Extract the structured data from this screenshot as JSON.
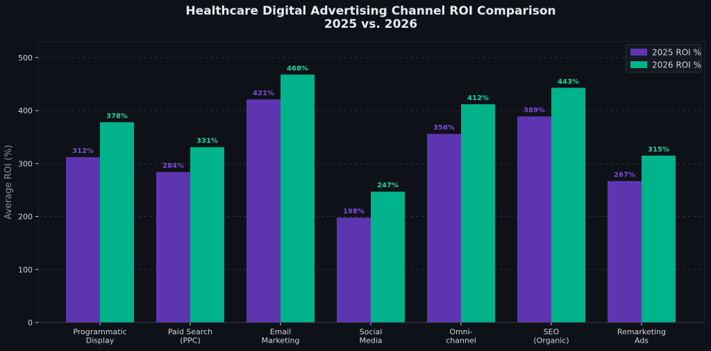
{
  "chart_data": {
    "type": "bar",
    "title": "Healthcare Digital Advertising Channel ROI Comparison",
    "subtitle": "2025 vs. 2026",
    "xlabel": "",
    "ylabel": "Average ROI (%)",
    "ylim": [
      0,
      530
    ],
    "yticks": [
      0,
      100,
      200,
      300,
      400,
      500
    ],
    "grid": true,
    "legend_position": "top-right",
    "categories": [
      "Programmatic\nDisplay",
      "Paid Search\n(PPC)",
      "Email\nMarketing",
      "Social\nMedia",
      "Omni-\nchannel",
      "SEO\n(Organic)",
      "Remarketing\nAds"
    ],
    "series": [
      {
        "name": "2025 ROI %",
        "color": "#5e35b1",
        "label_color": "#7c4ddb",
        "values": [
          312,
          284,
          421,
          198,
          356,
          389,
          267
        ],
        "labels": [
          "312%",
          "284%",
          "421%",
          "198%",
          "356%",
          "389%",
          "267%"
        ]
      },
      {
        "name": "2026 ROI %",
        "color": "#00b38a",
        "label_color": "#1fd6a4",
        "values": [
          378,
          331,
          468,
          247,
          412,
          443,
          315
        ],
        "labels": [
          "378%",
          "331%",
          "468%",
          "247%",
          "412%",
          "443%",
          "315%"
        ]
      }
    ]
  },
  "colors": {
    "background": "#0e1117",
    "plot_background": "#0e1117",
    "grid": "#2a2f3a",
    "axis_text": "#d0d4dc",
    "title_text": "#e8eaef",
    "ylabel_text": "#8a8f99"
  }
}
